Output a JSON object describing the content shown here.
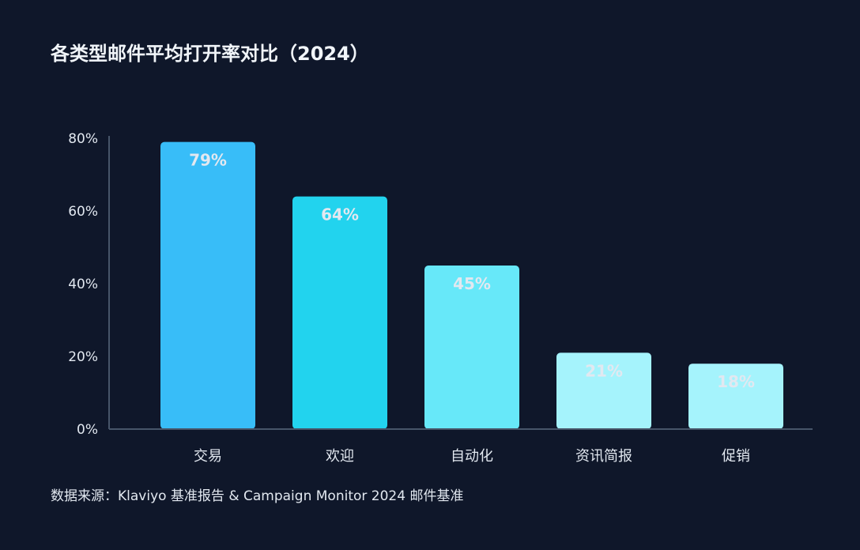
{
  "chart_data": {
    "type": "bar",
    "title": "各类型邮件平均打开率对比（2024）",
    "categories": [
      "交易",
      "欢迎",
      "自动化",
      "资讯简报",
      "促销"
    ],
    "values": [
      79,
      64,
      45,
      21,
      18
    ],
    "value_labels": [
      "79%",
      "64%",
      "45%",
      "21%",
      "18%"
    ],
    "colors": [
      "#38bdf8",
      "#22d3ee",
      "#67e8f9",
      "#a5f3fc",
      "#a5f3fc"
    ],
    "ylim": [
      0,
      80
    ],
    "yticks": [
      0,
      20,
      40,
      60,
      80
    ],
    "ytick_labels": [
      "0%",
      "20%",
      "40%",
      "60%",
      "80%"
    ],
    "xlabel": "",
    "ylabel": "",
    "grid": false,
    "source": "数据来源：Klaviyo 基准报告 & Campaign Monitor 2024 邮件基准"
  },
  "background": "#0f172a"
}
